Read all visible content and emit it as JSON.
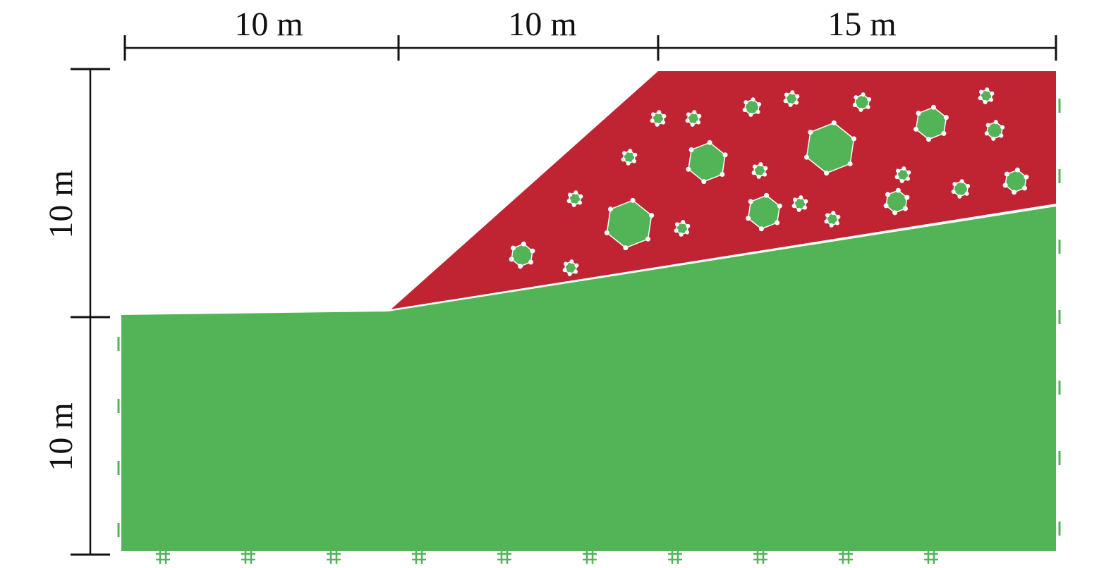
{
  "dimensions": {
    "top": [
      {
        "label": "10 m"
      },
      {
        "label": "10 m"
      },
      {
        "label": "15 m"
      }
    ],
    "left": [
      {
        "label": "10 m"
      },
      {
        "label": "10 m"
      }
    ]
  }
}
